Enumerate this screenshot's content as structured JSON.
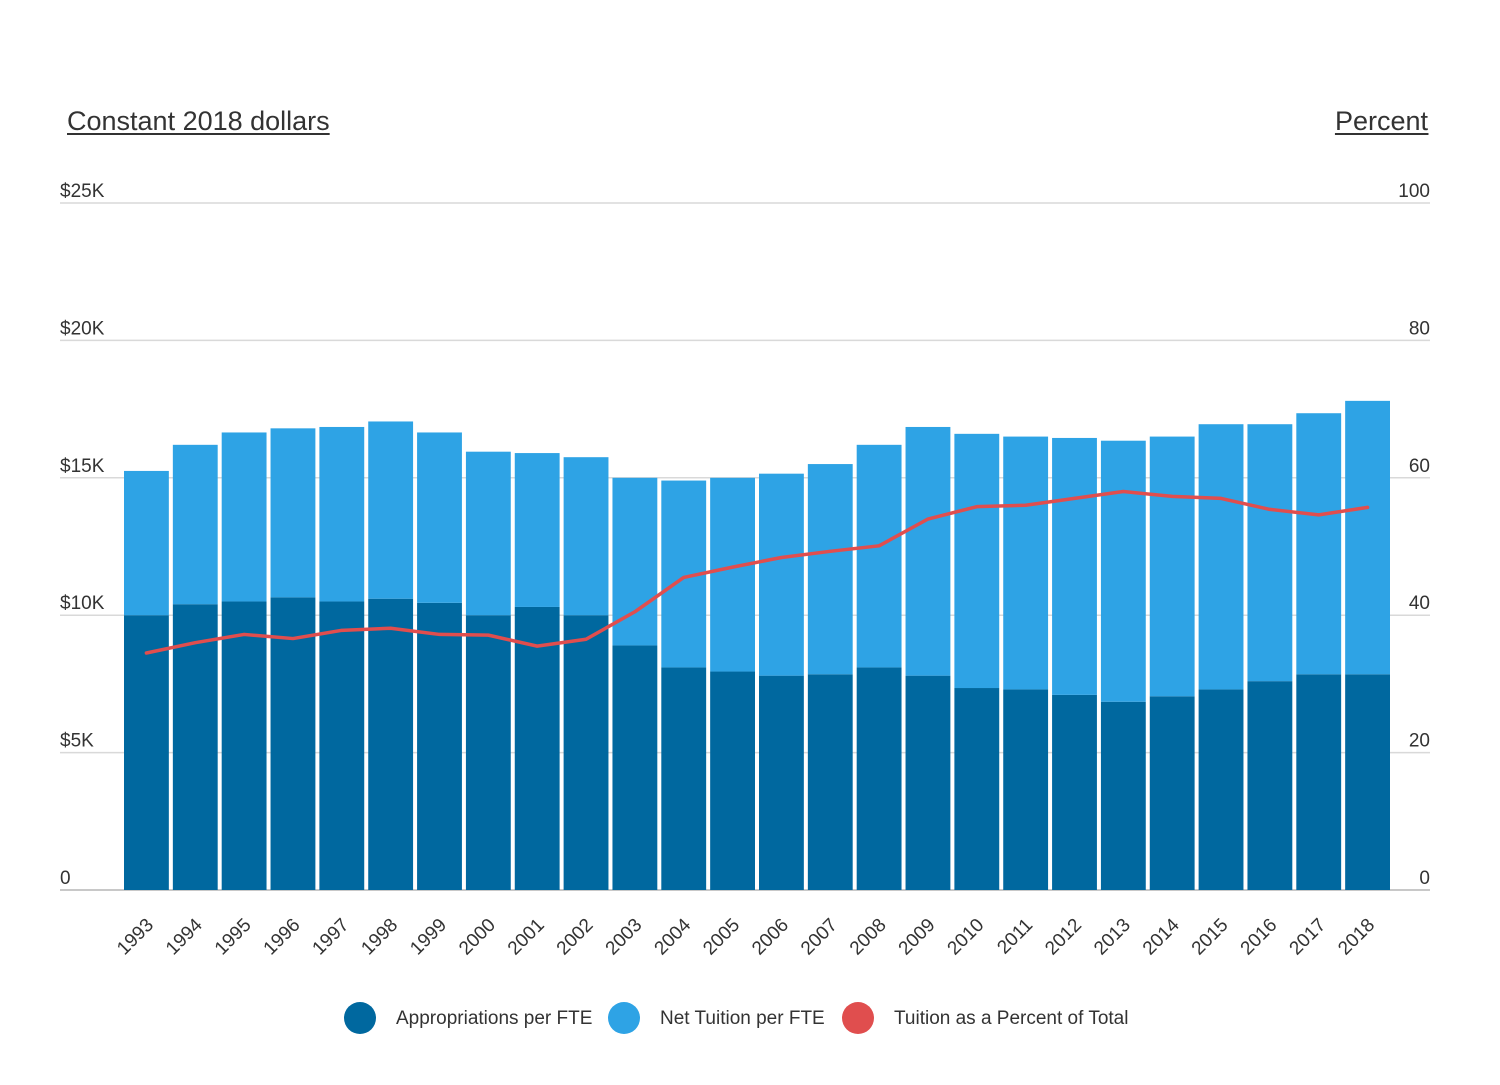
{
  "chart_data": {
    "type": "bar",
    "stacked": true,
    "categories": [
      "1993",
      "1994",
      "1995",
      "1996",
      "1997",
      "1998",
      "1999",
      "2000",
      "2001",
      "2002",
      "2003",
      "2004",
      "2005",
      "2006",
      "2007",
      "2008",
      "2009",
      "2010",
      "2011",
      "2012",
      "2013",
      "2014",
      "2015",
      "2016",
      "2017",
      "2018"
    ],
    "series": [
      {
        "name": "Appropriations per FTE",
        "axis": "left",
        "kind": "bar",
        "color": "#00689F",
        "values": [
          10000,
          10400,
          10500,
          10650,
          10500,
          10600,
          10450,
          10000,
          10300,
          10000,
          8900,
          8100,
          7950,
          7800,
          7850,
          8100,
          7800,
          7350,
          7300,
          7100,
          6850,
          7050,
          7300,
          7600,
          7850,
          7850
        ]
      },
      {
        "name": "Net Tuition per FTE",
        "axis": "left",
        "kind": "bar",
        "color": "#2EA3E5",
        "values": [
          5250,
          5800,
          6150,
          6150,
          6350,
          6450,
          6200,
          5950,
          5600,
          5750,
          6100,
          6800,
          7050,
          7350,
          7650,
          8100,
          9050,
          9250,
          9200,
          9350,
          9500,
          9450,
          9650,
          9350,
          9500,
          9950
        ]
      },
      {
        "name": "Tuition as a Percent of Total",
        "axis": "right",
        "kind": "line",
        "color": "#E04E4E",
        "values": [
          34.5,
          36.0,
          37.2,
          36.6,
          37.8,
          38.1,
          37.2,
          37.1,
          35.5,
          36.5,
          40.5,
          45.5,
          47.0,
          48.4,
          49.3,
          50.1,
          54.0,
          55.8,
          56.0,
          57.0,
          58.0,
          57.3,
          57.0,
          55.4,
          54.6,
          55.7
        ]
      }
    ],
    "left_axis": {
      "title": "Constant 2018 dollars",
      "ylim": [
        0,
        25000
      ],
      "ticks": [
        0,
        5000,
        10000,
        15000,
        20000,
        25000
      ],
      "tick_labels": [
        "0",
        "$5K",
        "$10K",
        "$15K",
        "$20K",
        "$25K"
      ]
    },
    "right_axis": {
      "title": "Percent",
      "ylim": [
        0,
        100
      ],
      "ticks": [
        0,
        20,
        40,
        60,
        80,
        100
      ],
      "tick_labels": [
        "0",
        "20",
        "40",
        "60",
        "80",
        "100"
      ]
    },
    "grid": true,
    "legend_position": "bottom"
  }
}
